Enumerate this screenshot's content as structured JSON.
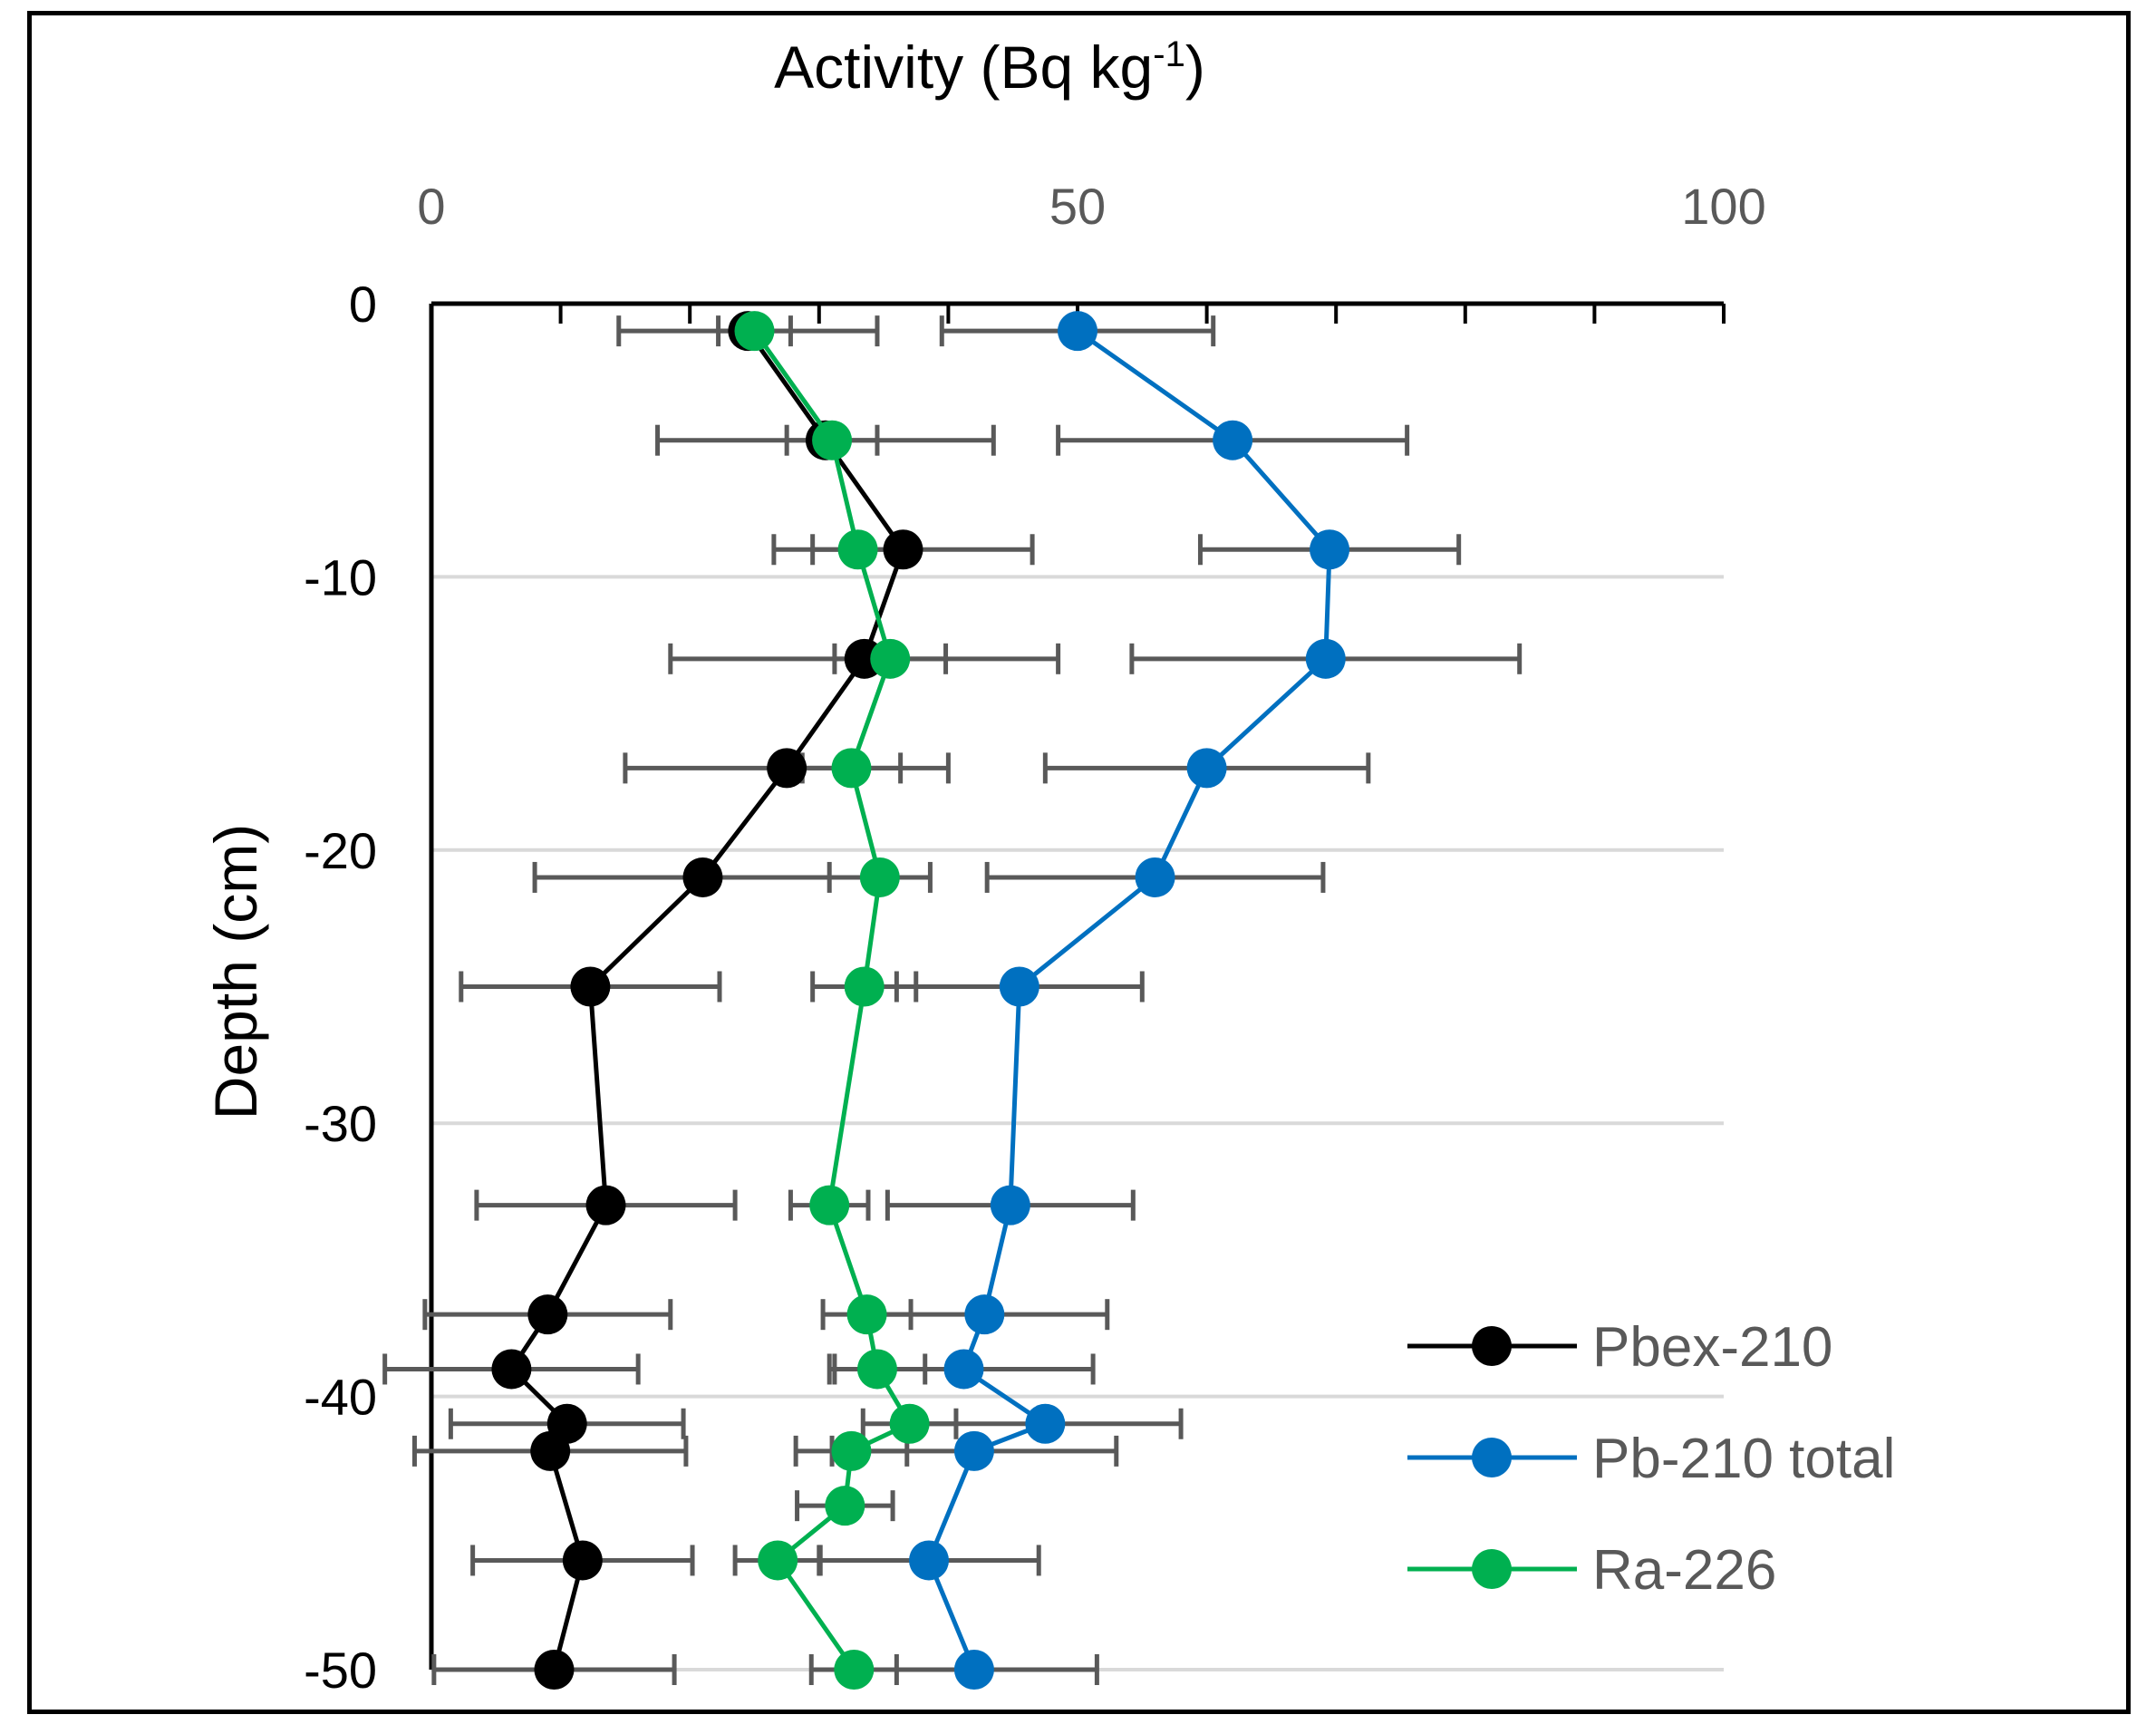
{
  "chart_data": {
    "type": "line",
    "xlabel": "Activity (Bq kg",
    "xlabel_sup": "-1",
    "xlabel_end": ")",
    "ylabel": "Depth (cm)",
    "xlim": [
      0,
      100
    ],
    "ylim": [
      -50,
      0
    ],
    "x_ticks": [
      {
        "value": 0,
        "label": "0"
      },
      {
        "value": 50,
        "label": "50"
      },
      {
        "value": 100,
        "label": "100"
      }
    ],
    "y_ticks": [
      {
        "value": 0,
        "label": "0"
      },
      {
        "value": -10,
        "label": "-10"
      },
      {
        "value": -20,
        "label": "-20"
      },
      {
        "value": -30,
        "label": "-30"
      },
      {
        "value": -40,
        "label": "-40"
      },
      {
        "value": -50,
        "label": "-50"
      }
    ],
    "x_axis_position": "top",
    "gridlines": "horizontal",
    "legend_position": "bottom-right",
    "series": [
      {
        "name": "Pbex-210",
        "color": "#000000",
        "points": [
          {
            "depth": -1,
            "x": 24.5,
            "err": 10
          },
          {
            "depth": -5,
            "x": 30.5,
            "err": 13
          },
          {
            "depth": -9,
            "x": 36.5,
            "err": 10
          },
          {
            "depth": -13,
            "x": 33.5,
            "err": 15
          },
          {
            "depth": -17,
            "x": 27.5,
            "err": 12.5
          },
          {
            "depth": -21,
            "x": 21.0,
            "err": 13
          },
          {
            "depth": -25,
            "x": 12.3,
            "err": 10
          },
          {
            "depth": -33,
            "x": 13.5,
            "err": 10
          },
          {
            "depth": -37,
            "x": 9.0,
            "err": 9.5
          },
          {
            "depth": -39,
            "x": 6.2,
            "err": 9.8
          },
          {
            "depth": -41,
            "x": 10.5,
            "err": 9
          },
          {
            "depth": -42,
            "x": 9.2,
            "err": 10.5
          },
          {
            "depth": -46,
            "x": 11.7,
            "err": 8.5
          },
          {
            "depth": -50,
            "x": 9.5,
            "err": 9.3
          }
        ]
      },
      {
        "name": "Pb-210 total",
        "color": "#0070C0",
        "points": [
          {
            "depth": -1,
            "x": 50.0,
            "err": 10.5
          },
          {
            "depth": -5,
            "x": 62.0,
            "err": 13.5
          },
          {
            "depth": -9,
            "x": 69.5,
            "err": 10
          },
          {
            "depth": -13,
            "x": 69.2,
            "err": 15
          },
          {
            "depth": -17,
            "x": 60.0,
            "err": 12.5
          },
          {
            "depth": -21,
            "x": 56.0,
            "err": 13
          },
          {
            "depth": -25,
            "x": 45.5,
            "err": 9.5
          },
          {
            "depth": -33,
            "x": 44.8,
            "err": 9.5
          },
          {
            "depth": -37,
            "x": 42.8,
            "err": 9.5
          },
          {
            "depth": -39,
            "x": 41.2,
            "err": 10
          },
          {
            "depth": -41,
            "x": 47.5,
            "err": 10.5
          },
          {
            "depth": -42,
            "x": 42.0,
            "err": 11
          },
          {
            "depth": -46,
            "x": 38.5,
            "err": 8.5
          },
          {
            "depth": -50,
            "x": 42.0,
            "err": 9.5
          }
        ]
      },
      {
        "name": "Ra-226",
        "color": "#00B050",
        "points": [
          {
            "depth": -1,
            "x": 25.0,
            "err": 2.8
          },
          {
            "depth": -5,
            "x": 31.0,
            "err": 3.5
          },
          {
            "depth": -9,
            "x": 33.0,
            "err": 3.5
          },
          {
            "depth": -13,
            "x": 35.5,
            "err": 4.3
          },
          {
            "depth": -17,
            "x": 32.5,
            "err": 3.8
          },
          {
            "depth": -21,
            "x": 34.7,
            "err": 3.9
          },
          {
            "depth": -25,
            "x": 33.5,
            "err": 4
          },
          {
            "depth": -33,
            "x": 30.8,
            "err": 3
          },
          {
            "depth": -37,
            "x": 33.7,
            "err": 3.4
          },
          {
            "depth": -39,
            "x": 34.5,
            "err": 3.7
          },
          {
            "depth": -41,
            "x": 37.0,
            "err": 3.6
          },
          {
            "depth": -42,
            "x": 32.5,
            "err": 4.3
          },
          {
            "depth": -44,
            "x": 32.0,
            "err": 3.7
          },
          {
            "depth": -46,
            "x": 26.8,
            "err": 3.3
          },
          {
            "depth": -50,
            "x": 32.7,
            "err": 3.3
          }
        ]
      }
    ]
  }
}
